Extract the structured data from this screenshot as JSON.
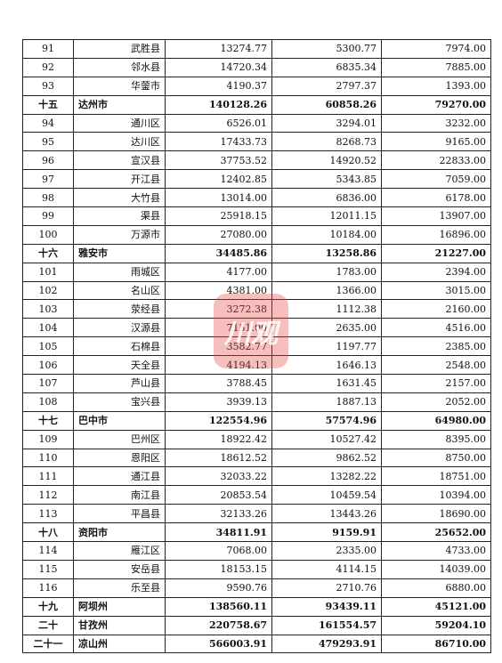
{
  "watermark": {
    "text": "川观",
    "color": "#e84646"
  },
  "rows": [
    {
      "type": "county",
      "no": "91",
      "name": "武胜县",
      "a": "13274.77",
      "b": "5300.77",
      "c": "7974.00"
    },
    {
      "type": "county",
      "no": "92",
      "name": "邻水县",
      "a": "14720.34",
      "b": "6835.34",
      "c": "7885.00"
    },
    {
      "type": "county",
      "no": "93",
      "name": "华蓥市",
      "a": "4190.37",
      "b": "2797.37",
      "c": "1393.00"
    },
    {
      "type": "city",
      "no": "十五",
      "name": "达州市",
      "a": "140128.26",
      "b": "60858.26",
      "c": "79270.00"
    },
    {
      "type": "county",
      "no": "94",
      "name": "通川区",
      "a": "6526.01",
      "b": "3294.01",
      "c": "3232.00"
    },
    {
      "type": "county",
      "no": "95",
      "name": "达川区",
      "a": "17433.73",
      "b": "8268.73",
      "c": "9165.00"
    },
    {
      "type": "county",
      "no": "96",
      "name": "宣汉县",
      "a": "37753.52",
      "b": "14920.52",
      "c": "22833.00"
    },
    {
      "type": "county",
      "no": "97",
      "name": "开江县",
      "a": "12402.85",
      "b": "5343.85",
      "c": "7059.00"
    },
    {
      "type": "county",
      "no": "98",
      "name": "大竹县",
      "a": "13014.00",
      "b": "6836.00",
      "c": "6178.00"
    },
    {
      "type": "county",
      "no": "99",
      "name": "渠县",
      "a": "25918.15",
      "b": "12011.15",
      "c": "13907.00"
    },
    {
      "type": "county",
      "no": "100",
      "name": "万源市",
      "a": "27080.00",
      "b": "10184.00",
      "c": "16896.00"
    },
    {
      "type": "city",
      "no": "十六",
      "name": "雅安市",
      "a": "34485.86",
      "b": "13258.86",
      "c": "21227.00"
    },
    {
      "type": "county",
      "no": "101",
      "name": "雨城区",
      "a": "4177.00",
      "b": "1783.00",
      "c": "2394.00"
    },
    {
      "type": "county",
      "no": "102",
      "name": "名山区",
      "a": "4381.00",
      "b": "1366.00",
      "c": "3015.00"
    },
    {
      "type": "county",
      "no": "103",
      "name": "荥经县",
      "a": "3272.38",
      "b": "1112.38",
      "c": "2160.00"
    },
    {
      "type": "county",
      "no": "104",
      "name": "汉源县",
      "a": "7151.00",
      "b": "2635.00",
      "c": "4516.00"
    },
    {
      "type": "county",
      "no": "105",
      "name": "石棉县",
      "a": "3582.77",
      "b": "1197.77",
      "c": "2385.00"
    },
    {
      "type": "county",
      "no": "106",
      "name": "天全县",
      "a": "4194.13",
      "b": "1646.13",
      "c": "2548.00"
    },
    {
      "type": "county",
      "no": "107",
      "name": "芦山县",
      "a": "3788.45",
      "b": "1631.45",
      "c": "2157.00"
    },
    {
      "type": "county",
      "no": "108",
      "name": "宝兴县",
      "a": "3939.13",
      "b": "1887.13",
      "c": "2052.00"
    },
    {
      "type": "city",
      "no": "十七",
      "name": "巴中市",
      "a": "122554.96",
      "b": "57574.96",
      "c": "64980.00"
    },
    {
      "type": "county",
      "no": "109",
      "name": "巴州区",
      "a": "18922.42",
      "b": "10527.42",
      "c": "8395.00"
    },
    {
      "type": "county",
      "no": "110",
      "name": "恩阳区",
      "a": "18612.52",
      "b": "9862.52",
      "c": "8750.00"
    },
    {
      "type": "county",
      "no": "111",
      "name": "通江县",
      "a": "32033.22",
      "b": "13282.22",
      "c": "18751.00"
    },
    {
      "type": "county",
      "no": "112",
      "name": "南江县",
      "a": "20853.54",
      "b": "10459.54",
      "c": "10394.00"
    },
    {
      "type": "county",
      "no": "113",
      "name": "平昌县",
      "a": "32133.26",
      "b": "13443.26",
      "c": "18690.00"
    },
    {
      "type": "city",
      "no": "十八",
      "name": "资阳市",
      "a": "34811.91",
      "b": "9159.91",
      "c": "25652.00"
    },
    {
      "type": "county",
      "no": "114",
      "name": "雁江区",
      "a": "7068.00",
      "b": "2335.00",
      "c": "4733.00"
    },
    {
      "type": "county",
      "no": "115",
      "name": "安岳县",
      "a": "18153.15",
      "b": "4114.15",
      "c": "14039.00"
    },
    {
      "type": "county",
      "no": "116",
      "name": "乐至县",
      "a": "9590.76",
      "b": "2710.76",
      "c": "6880.00"
    },
    {
      "type": "city",
      "no": "十九",
      "name": "阿坝州",
      "a": "138560.11",
      "b": "93439.11",
      "c": "45121.00"
    },
    {
      "type": "city",
      "no": "二十",
      "name": "甘孜州",
      "a": "220758.67",
      "b": "161554.57",
      "c": "59204.10"
    },
    {
      "type": "city",
      "no": "二十一",
      "name": "凉山州",
      "a": "566003.91",
      "b": "479293.91",
      "c": "86710.00"
    }
  ]
}
